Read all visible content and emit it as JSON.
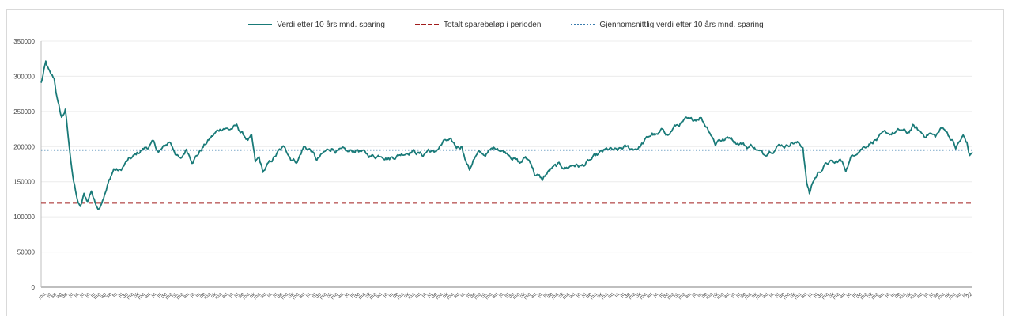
{
  "chart_data": {
    "type": "line",
    "title": "",
    "xlabel": "",
    "ylabel": "",
    "ylim": [
      0,
      350000
    ],
    "yticks": [
      "0",
      "50000",
      "100000",
      "150000",
      "200000",
      "250000",
      "300000",
      "350000"
    ],
    "yticks_values": [
      0,
      50000,
      100000,
      150000,
      200000,
      250000,
      300000,
      350000
    ],
    "grid": "horizontal",
    "legend_position": "top",
    "x_count": 1000,
    "xtick_labels": [
      "ma",
      "ja",
      "se",
      "ap",
      "de",
      "ju",
      "ja",
      "ju",
      "ja",
      "ju",
      "ma",
      "ap",
      "se",
      "fe",
      "ju",
      "de",
      "ma",
      "ok",
      "ma",
      "au",
      "ja",
      "ju",
      "de",
      "ma",
      "ok",
      "ma",
      "au",
      "ja",
      "ju",
      "de",
      "ma",
      "ok",
      "ma",
      "au",
      "ja",
      "ju",
      "de",
      "ma",
      "ok",
      "ma",
      "au",
      "ja",
      "ju",
      "de",
      "ma",
      "ok",
      "ma",
      "au",
      "ja",
      "ju",
      "de",
      "ma",
      "ok",
      "ma",
      "au",
      "ja",
      "ju",
      "de",
      "ma",
      "ok",
      "ma",
      "au",
      "ja",
      "ju",
      "de",
      "ma",
      "ok",
      "ma",
      "au",
      "ja",
      "ju",
      "de",
      "ma",
      "ok",
      "ma",
      "au",
      "ja",
      "ju",
      "de",
      "ma",
      "ok",
      "ma",
      "au",
      "ja",
      "ju",
      "de",
      "ma",
      "ok",
      "ma",
      "au",
      "ja",
      "ju",
      "de",
      "ma",
      "ok",
      "ma",
      "au",
      "ja",
      "ju",
      "de",
      "ma",
      "ok",
      "ma",
      "au",
      "ja",
      "ju",
      "de",
      "ma",
      "ok",
      "ma",
      "au",
      "ja",
      "ju",
      "de",
      "ma",
      "ok",
      "ma",
      "au",
      "ja",
      "ju",
      "de",
      "ma",
      "ok",
      "ma",
      "au",
      "ja",
      "ju",
      "de",
      "ma",
      "ok",
      "ma",
      "au",
      "ja",
      "ju",
      "de",
      "ma",
      "ok",
      "ma",
      "au",
      "ja",
      "ju",
      "de",
      "ma",
      "ok",
      "ma",
      "au",
      "ja",
      "ju",
      "de",
      "ma",
      "ok",
      "ma",
      "au",
      "ja",
      "ju",
      "de",
      "ma",
      "ok",
      "ma",
      "au",
      "ja",
      "ju",
      "de",
      "ma",
      "ok",
      "ma",
      "au",
      "ja",
      "22"
    ],
    "series": [
      {
        "name": "Verdi etter 10 års mnd. sparing",
        "color": "#197a78",
        "style": "solid",
        "anchors": [
          [
            0,
            290000
          ],
          [
            5,
            318000
          ],
          [
            10,
            300000
          ],
          [
            14,
            295000
          ],
          [
            18,
            262000
          ],
          [
            22,
            240000
          ],
          [
            26,
            252000
          ],
          [
            30,
            200000
          ],
          [
            34,
            160000
          ],
          [
            38,
            128000
          ],
          [
            42,
            112000
          ],
          [
            46,
            130000
          ],
          [
            50,
            122000
          ],
          [
            54,
            138000
          ],
          [
            58,
            120000
          ],
          [
            62,
            114000
          ],
          [
            66,
            128000
          ],
          [
            70,
            140000
          ],
          [
            74,
            155000
          ],
          [
            78,
            168000
          ],
          [
            85,
            165000
          ],
          [
            92,
            178000
          ],
          [
            100,
            185000
          ],
          [
            108,
            195000
          ],
          [
            115,
            200000
          ],
          [
            120,
            205000
          ],
          [
            126,
            192000
          ],
          [
            132,
            198000
          ],
          [
            138,
            207000
          ],
          [
            144,
            193000
          ],
          [
            150,
            180000
          ],
          [
            156,
            196000
          ],
          [
            162,
            182000
          ],
          [
            168,
            190000
          ],
          [
            174,
            200000
          ],
          [
            182,
            212000
          ],
          [
            190,
            222000
          ],
          [
            196,
            228000
          ],
          [
            202,
            225000
          ],
          [
            210,
            228000
          ],
          [
            216,
            218000
          ],
          [
            222,
            210000
          ],
          [
            226,
            212000
          ],
          [
            230,
            175000
          ],
          [
            234,
            182000
          ],
          [
            238,
            163000
          ],
          [
            242,
            170000
          ],
          [
            248,
            180000
          ],
          [
            255,
            192000
          ],
          [
            262,
            198000
          ],
          [
            268,
            185000
          ],
          [
            275,
            180000
          ],
          [
            282,
            200000
          ],
          [
            290,
            195000
          ],
          [
            296,
            180000
          ],
          [
            304,
            190000
          ],
          [
            312,
            198000
          ],
          [
            320,
            194000
          ],
          [
            330,
            190000
          ],
          [
            340,
            196000
          ],
          [
            350,
            188000
          ],
          [
            358,
            186000
          ],
          [
            366,
            190000
          ],
          [
            374,
            185000
          ],
          [
            382,
            188000
          ],
          [
            390,
            192000
          ],
          [
            398,
            196000
          ],
          [
            404,
            192000
          ],
          [
            410,
            188000
          ],
          [
            416,
            196000
          ],
          [
            422,
            190000
          ],
          [
            428,
            200000
          ],
          [
            434,
            208000
          ],
          [
            440,
            205000
          ],
          [
            446,
            198000
          ],
          [
            452,
            202000
          ],
          [
            456,
            180000
          ],
          [
            460,
            168000
          ],
          [
            464,
            182000
          ],
          [
            470,
            190000
          ],
          [
            476,
            188000
          ],
          [
            484,
            195000
          ],
          [
            490,
            200000
          ],
          [
            496,
            194000
          ],
          [
            502,
            192000
          ],
          [
            508,
            185000
          ],
          [
            514,
            176000
          ],
          [
            520,
            184000
          ],
          [
            526,
            178000
          ],
          [
            530,
            162000
          ],
          [
            534,
            158000
          ],
          [
            538,
            152000
          ],
          [
            542,
            160000
          ],
          [
            548,
            168000
          ],
          [
            556,
            172000
          ],
          [
            564,
            170000
          ],
          [
            572,
            175000
          ],
          [
            580,
            172000
          ],
          [
            588,
            178000
          ],
          [
            596,
            185000
          ],
          [
            604,
            192000
          ],
          [
            610,
            195000
          ],
          [
            618,
            192000
          ],
          [
            626,
            198000
          ],
          [
            634,
            196000
          ],
          [
            642,
            200000
          ],
          [
            650,
            210000
          ],
          [
            656,
            218000
          ],
          [
            662,
            215000
          ],
          [
            668,
            222000
          ],
          [
            674,
            218000
          ],
          [
            680,
            228000
          ],
          [
            686,
            232000
          ],
          [
            692,
            236000
          ],
          [
            698,
            234000
          ],
          [
            704,
            240000
          ],
          [
            708,
            244000
          ],
          [
            712,
            234000
          ],
          [
            716,
            228000
          ],
          [
            720,
            218000
          ],
          [
            724,
            205000
          ],
          [
            728,
            212000
          ],
          [
            734,
            210000
          ],
          [
            740,
            214000
          ],
          [
            746,
            208000
          ],
          [
            752,
            206000
          ],
          [
            758,
            200000
          ],
          [
            764,
            202000
          ],
          [
            770,
            194000
          ],
          [
            776,
            188000
          ],
          [
            782,
            196000
          ],
          [
            788,
            200000
          ],
          [
            794,
            204000
          ],
          [
            800,
            202000
          ],
          [
            806,
            208000
          ],
          [
            812,
            205000
          ],
          [
            818,
            200000
          ],
          [
            822,
            150000
          ],
          [
            825,
            132000
          ],
          [
            828,
            148000
          ],
          [
            834,
            162000
          ],
          [
            840,
            172000
          ],
          [
            846,
            178000
          ],
          [
            852,
            175000
          ],
          [
            858,
            180000
          ],
          [
            864,
            168000
          ],
          [
            870,
            185000
          ],
          [
            876,
            195000
          ],
          [
            882,
            200000
          ],
          [
            888,
            205000
          ],
          [
            894,
            210000
          ],
          [
            900,
            212000
          ],
          [
            906,
            216000
          ],
          [
            912,
            218000
          ],
          [
            918,
            220000
          ],
          [
            924,
            222000
          ],
          [
            930,
            218000
          ],
          [
            936,
            228000
          ],
          [
            942,
            222000
          ],
          [
            948,
            216000
          ],
          [
            954,
            220000
          ],
          [
            960,
            214000
          ],
          [
            966,
            224000
          ],
          [
            970,
            226000
          ],
          [
            974,
            218000
          ],
          [
            978,
            210000
          ],
          [
            982,
            198000
          ],
          [
            986,
            206000
          ],
          [
            990,
            214000
          ],
          [
            994,
            205000
          ],
          [
            997,
            186000
          ],
          [
            1000,
            192000
          ]
        ]
      },
      {
        "name": "Totalt sparebeløp i perioden",
        "color": "#a11c1c",
        "style": "dashed",
        "value": 120000
      },
      {
        "name": "Gjennomsnittlig verdi etter 10 års mnd. sparing",
        "color": "#3a7cae",
        "style": "dotted",
        "value": 195000
      }
    ]
  }
}
